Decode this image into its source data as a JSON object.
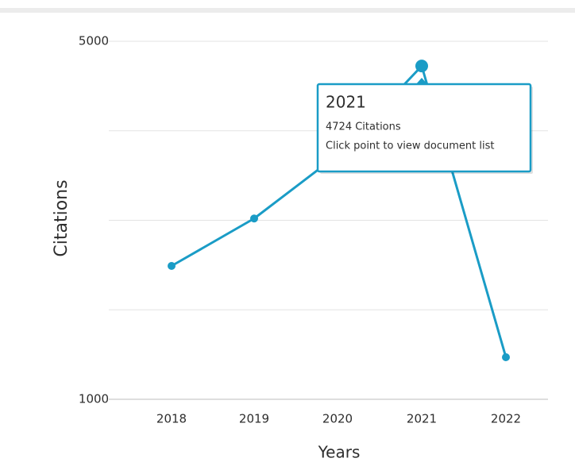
{
  "chart_data": {
    "type": "line",
    "x_label": "Years",
    "y_label": "Citations",
    "categories": [
      "2018",
      "2019",
      "2020",
      "2021",
      "2022"
    ],
    "series": [
      {
        "name": "Citations",
        "color": "#1a9cc6",
        "values": [
          2490,
          3020,
          3730,
          4724,
          1470
        ]
      }
    ],
    "ylim": [
      1000,
      5000
    ],
    "yticks": [
      1000,
      5000
    ],
    "ygrid": [
      2000,
      3000,
      4000
    ],
    "grid": true,
    "tooltip": {
      "index": 3,
      "title": "2021",
      "lines": [
        "4724 Citations",
        "Click point to view document list"
      ]
    }
  }
}
